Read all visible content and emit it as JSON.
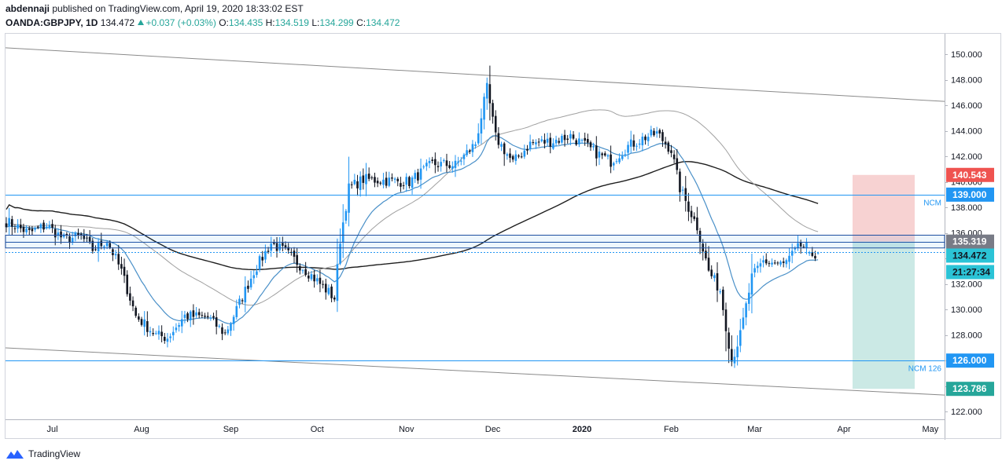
{
  "header": {
    "publisher": "abdennaji",
    "published_text": "published on TradingView.com, April 19, 2020 18:33:02 EST",
    "symbol": "OANDA:GBPJPY, 1D",
    "last": "134.472",
    "change": "+0.037 (+0.03%)",
    "o_label": "O:",
    "o_value": "134.435",
    "h_label": "H:",
    "h_value": "134.519",
    "l_label": "L:",
    "l_value": "134.299",
    "c_label": "C:",
    "c_value": "134.472"
  },
  "footer": {
    "brand": "TradingView"
  },
  "colors": {
    "up": "#26a69a",
    "down": "#131722",
    "up_candle": "#2196f3",
    "hline": "#2196f3",
    "ema_fast": "#4a90c8",
    "sma_mid": "#a0a0a0",
    "sma_slow": "#1e1e1e",
    "stop_zone": "#f7d2d2",
    "target_zone": "#cbe9e5"
  },
  "chart_data": {
    "type": "candlestick",
    "symbol": "OANDA:GBPJPY",
    "timeframe": "1D",
    "ylim": [
      121.4,
      151.6
    ],
    "y_ticks": [
      "122.000",
      "124.000",
      "126.000",
      "128.000",
      "130.000",
      "132.000",
      "134.000",
      "136.000",
      "138.000",
      "140.000",
      "142.000",
      "144.000",
      "146.000",
      "148.000",
      "150.000"
    ],
    "x_ticks": [
      "Jul",
      "Aug",
      "Sep",
      "Oct",
      "Nov",
      "Dec",
      "2020",
      "Feb",
      "Mar",
      "Apr",
      "May"
    ],
    "keyframes": [
      [
        0,
        136.9
      ],
      [
        8,
        136.0
      ],
      [
        14,
        136.6
      ],
      [
        20,
        135.5
      ],
      [
        26,
        135.7
      ],
      [
        30,
        134.7
      ],
      [
        35,
        135.4
      ],
      [
        40,
        133.0
      ],
      [
        45,
        129.5
      ],
      [
        52,
        128.0
      ],
      [
        56,
        127.8
      ],
      [
        62,
        129.5
      ],
      [
        70,
        129.4
      ],
      [
        76,
        128.1
      ],
      [
        80,
        130.0
      ],
      [
        86,
        133.0
      ],
      [
        92,
        135.2
      ],
      [
        97,
        134.5
      ],
      [
        104,
        133.1
      ],
      [
        110,
        131.8
      ],
      [
        114,
        130.9
      ],
      [
        116,
        135.5
      ],
      [
        119,
        139.5
      ],
      [
        124,
        140.2
      ],
      [
        140,
        140.0
      ],
      [
        148,
        141.4
      ],
      [
        156,
        141.3
      ],
      [
        163,
        143.0
      ],
      [
        167,
        147.3
      ],
      [
        170,
        143.5
      ],
      [
        176,
        141.5
      ],
      [
        182,
        143.0
      ],
      [
        190,
        143.2
      ],
      [
        196,
        143.6
      ],
      [
        204,
        142.4
      ],
      [
        210,
        141.6
      ],
      [
        216,
        142.8
      ],
      [
        222,
        143.5
      ],
      [
        226,
        143.8
      ],
      [
        231,
        142.5
      ],
      [
        234,
        139.5
      ],
      [
        240,
        136.5
      ],
      [
        244,
        133.0
      ],
      [
        248,
        131.5
      ],
      [
        252,
        126.0
      ],
      [
        255,
        128.0
      ],
      [
        259,
        132.5
      ],
      [
        263,
        133.8
      ],
      [
        270,
        133.5
      ],
      [
        276,
        135.0
      ],
      [
        282,
        134.45
      ]
    ],
    "candles": [
      {
        "o": 134.4,
        "h": 134.6,
        "l": 134.2,
        "c": 134.5
      },
      {
        "o": 134.5,
        "h": 134.9,
        "l": 134.1,
        "c": 134.2
      },
      {
        "o": 134.2,
        "h": 134.6,
        "l": 133.8,
        "c": 134.0
      },
      {
        "o": 134.4,
        "h": 134.519,
        "l": 134.299,
        "c": 134.472
      }
    ],
    "ema20_end": 133.9,
    "sma50_end": 136.1,
    "sma200_end": 138.3,
    "channel": {
      "upper": {
        "from": 150.5,
        "to": 146.3
      },
      "lower": {
        "from": 127.0,
        "to": 123.3
      }
    },
    "levels": [
      {
        "price": 139.0,
        "label": "NCM",
        "tag": "139.000"
      },
      {
        "price": 126.0,
        "label": "NCM 126",
        "tag": "126.000"
      },
      {
        "price": 135.319,
        "label": "",
        "tag": "135.319"
      },
      {
        "price": 134.472,
        "label": "",
        "tag": "134.472"
      }
    ],
    "position": {
      "stop": 140.543,
      "stop_tag": "140.543",
      "entry": 135.319,
      "target": 123.786,
      "target_tag": "123.786"
    },
    "countdown": "21:27:34"
  }
}
